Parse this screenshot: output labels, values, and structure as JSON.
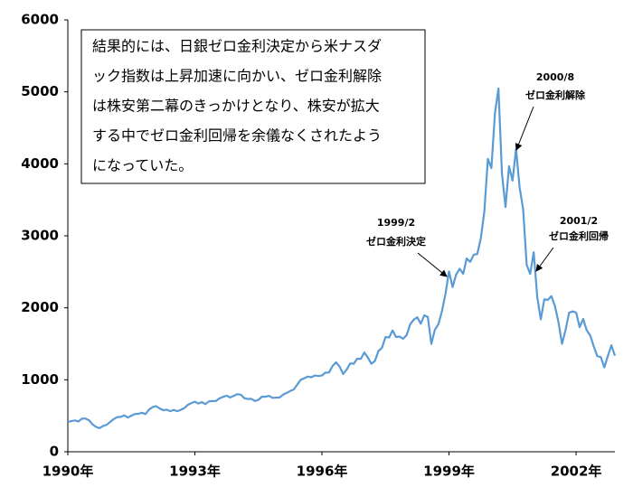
{
  "chart_data": {
    "type": "line",
    "categories": [
      "1990年",
      null,
      null,
      null,
      null,
      null,
      null,
      null,
      null,
      null,
      null,
      null,
      null,
      null,
      null,
      null,
      null,
      null,
      null,
      null,
      null,
      null,
      null,
      null,
      null,
      null,
      null,
      null,
      null,
      null,
      null,
      null,
      null,
      null,
      null,
      null,
      "1993年",
      null,
      null,
      null,
      null,
      null,
      null,
      null,
      null,
      null,
      null,
      null,
      null,
      null,
      null,
      null,
      null,
      null,
      null,
      null,
      null,
      null,
      null,
      null,
      null,
      null,
      null,
      null,
      null,
      null,
      null,
      null,
      null,
      null,
      null,
      null,
      "1996年",
      null,
      null,
      null,
      null,
      null,
      null,
      null,
      null,
      null,
      null,
      null,
      null,
      null,
      null,
      null,
      null,
      null,
      null,
      null,
      null,
      null,
      null,
      null,
      null,
      null,
      null,
      null,
      null,
      null,
      null,
      null,
      null,
      null,
      null,
      null,
      "1999年",
      null,
      null,
      null,
      null,
      null,
      null,
      null,
      null,
      null,
      null,
      null,
      null,
      null,
      null,
      null,
      null,
      null,
      null,
      null,
      null,
      null,
      null,
      null,
      null,
      null,
      null,
      null,
      null,
      null,
      null,
      null,
      null,
      null,
      null,
      null,
      "2002年",
      null,
      null,
      null,
      null,
      null,
      null,
      null,
      null,
      null,
      null,
      null
    ],
    "values": [
      416,
      425,
      435,
      420,
      459,
      462,
      438,
      381,
      345,
      329,
      359,
      374,
      414,
      453,
      482,
      485,
      506,
      475,
      502,
      525,
      527,
      542,
      523,
      586,
      620,
      633,
      603,
      578,
      585,
      563,
      581,
      563,
      583,
      605,
      652,
      677,
      696,
      670,
      690,
      661,
      700,
      704,
      705,
      742,
      763,
      779,
      754,
      777,
      800,
      793,
      744,
      733,
      735,
      706,
      722,
      766,
      764,
      777,
      750,
      752,
      755,
      793,
      817,
      843,
      865,
      933,
      1001,
      1020,
      1044,
      1036,
      1059,
      1052,
      1060,
      1100,
      1101,
      1191,
      1243,
      1185,
      1081,
      1141,
      1227,
      1222,
      1293,
      1291,
      1380,
      1309,
      1222,
      1261,
      1400,
      1443,
      1594,
      1587,
      1686,
      1594,
      1601,
      1570,
      1620,
      1771,
      1835,
      1869,
      1779,
      1895,
      1873,
      1499,
      1694,
      1772,
      1950,
      2193,
      2506,
      2288,
      2461,
      2543,
      2471,
      2686,
      2638,
      2739,
      2746,
      2966,
      3336,
      4069,
      3940,
      4697,
      5048,
      3861,
      3401,
      3966,
      3767,
      4206,
      3673,
      3370,
      2598,
      2471,
      2773,
      2152,
      1840,
      2116,
      2110,
      2161,
      2027,
      1805,
      1499,
      1690,
      1931,
      1950,
      1934,
      1731,
      1845,
      1688,
      1616,
      1463,
      1328,
      1315,
      1172,
      1330,
      1479,
      1336
    ],
    "color": "#5b9bd5",
    "ylim": [
      0,
      6000
    ],
    "yticks": [
      0,
      1000,
      2000,
      3000,
      4000,
      5000,
      6000
    ],
    "text_box": [
      "結果的には、日銀ゼロ金利決定から米ナスダ",
      "ック指数は上昇加速に向かい、ゼロ金利解除",
      "は株安第二幕のきっかけとなり、株安が拡大",
      "する中でゼロ金利回帰を余儀なくされたよう",
      "になっていた。"
    ],
    "annotations": [
      [
        "1999/2",
        "ゼロ金利決定"
      ],
      [
        "2000/8",
        "ゼロ金利解除"
      ],
      [
        "2001/2",
        "ゼロ金利回帰"
      ]
    ]
  }
}
